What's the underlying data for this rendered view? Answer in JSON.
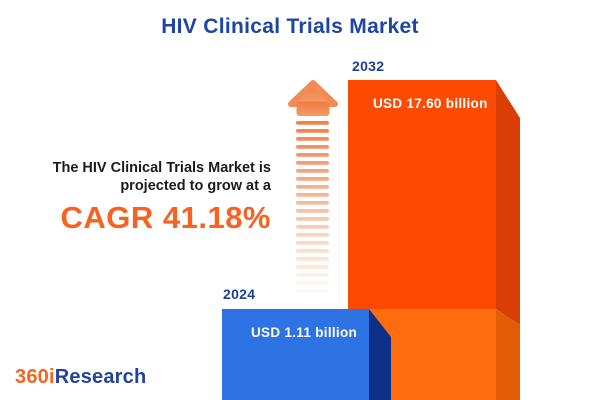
{
  "header": {
    "title": "HIV Clinical Trials Market"
  },
  "projection": {
    "line1": "The HIV Clinical Trials Market is",
    "line2": "projected to grow at a",
    "cagr": "CAGR 41.18%"
  },
  "chart_data": {
    "type": "bar",
    "title": "HIV Clinical Trials Market",
    "categories": [
      "2024",
      "2032"
    ],
    "values": [
      1.11,
      17.6
    ],
    "unit": "USD billion",
    "value_labels": [
      "USD 1.11 billion",
      "USD 17.60 billion"
    ],
    "cagr_percent": 41.18,
    "style": "3d-extruded-bars",
    "grid": false,
    "legend_position": "none",
    "annotations": [
      "growth-arrow-up-fading"
    ]
  },
  "colors": {
    "title_blue": "#1d45a4",
    "year_label_blue": "#1e3f9c",
    "accent_orange": "#f8611f",
    "bar_2032_front_top": "#fc4a02",
    "bar_2032_front_bottom": "#ff6d0e",
    "bar_2032_side_top": "#d93e05",
    "bar_2032_side_bottom": "#e25c05",
    "bar_2024_front": "#2e73e3",
    "bar_2024_side": "#0c2f87",
    "arrow_orange": "#f2804a",
    "text_dark": "#1a1b20",
    "logo_orange": "#f3661f",
    "logo_blue": "#23439b",
    "background": "#ffffff"
  },
  "logo": {
    "prefix": "360i",
    "suffix": "Research"
  }
}
